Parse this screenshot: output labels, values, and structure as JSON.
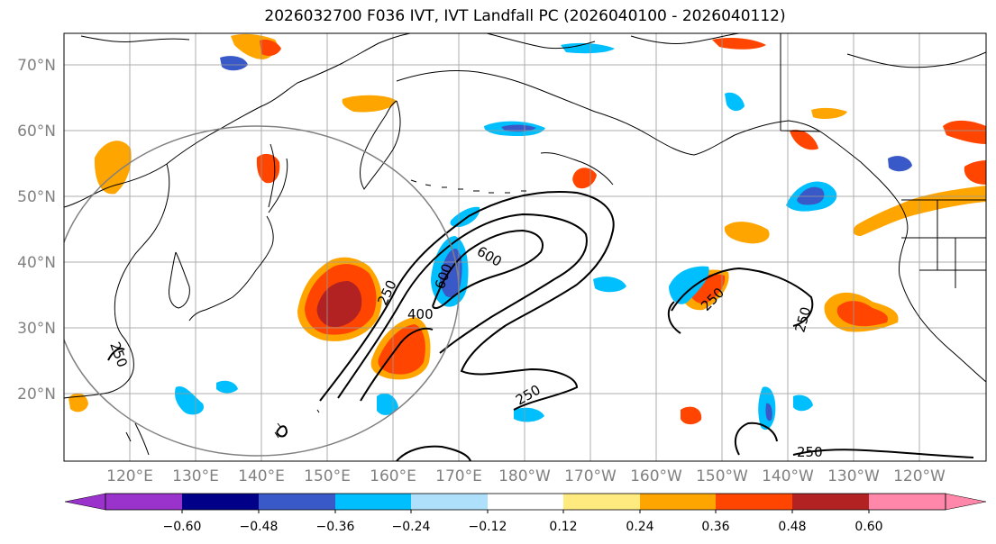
{
  "figure": {
    "title": "2026032700 F036 IVT, IVT Landfall PC (2026040100 - 2026040112)",
    "colors": {
      "land_outline": "#000000",
      "grid": "#999999",
      "circle": "#808080",
      "axis_label": "#808080"
    }
  },
  "map": {
    "lon_labels": [
      "120°E",
      "130°E",
      "140°E",
      "150°E",
      "160°E",
      "170°E",
      "180°W",
      "170°W",
      "160°W",
      "150°W",
      "140°W",
      "130°W",
      "120°W"
    ],
    "lat_labels": [
      "70°N",
      "60°N",
      "50°N",
      "40°N",
      "30°N",
      "20°N"
    ]
  },
  "contours": {
    "labels": [
      {
        "text": "250"
      },
      {
        "text": "400"
      },
      {
        "text": "600"
      },
      {
        "text": "600"
      },
      {
        "text": "250"
      },
      {
        "text": "250"
      },
      {
        "text": "250"
      },
      {
        "text": "250"
      },
      {
        "text": "250"
      }
    ]
  },
  "colorbar": {
    "colors": [
      "#9933cc",
      "#000088",
      "#3a59c9",
      "#00bfff",
      "#aee0fb",
      "#ffffff",
      "#ffea80",
      "#ffa500",
      "#ff4500",
      "#b22222",
      "#ff88aa"
    ],
    "ticks": [
      "−0.60",
      "−0.48",
      "−0.36",
      "−0.24",
      "−0.12",
      "0.12",
      "0.24",
      "0.36",
      "0.48",
      "0.60"
    ]
  }
}
